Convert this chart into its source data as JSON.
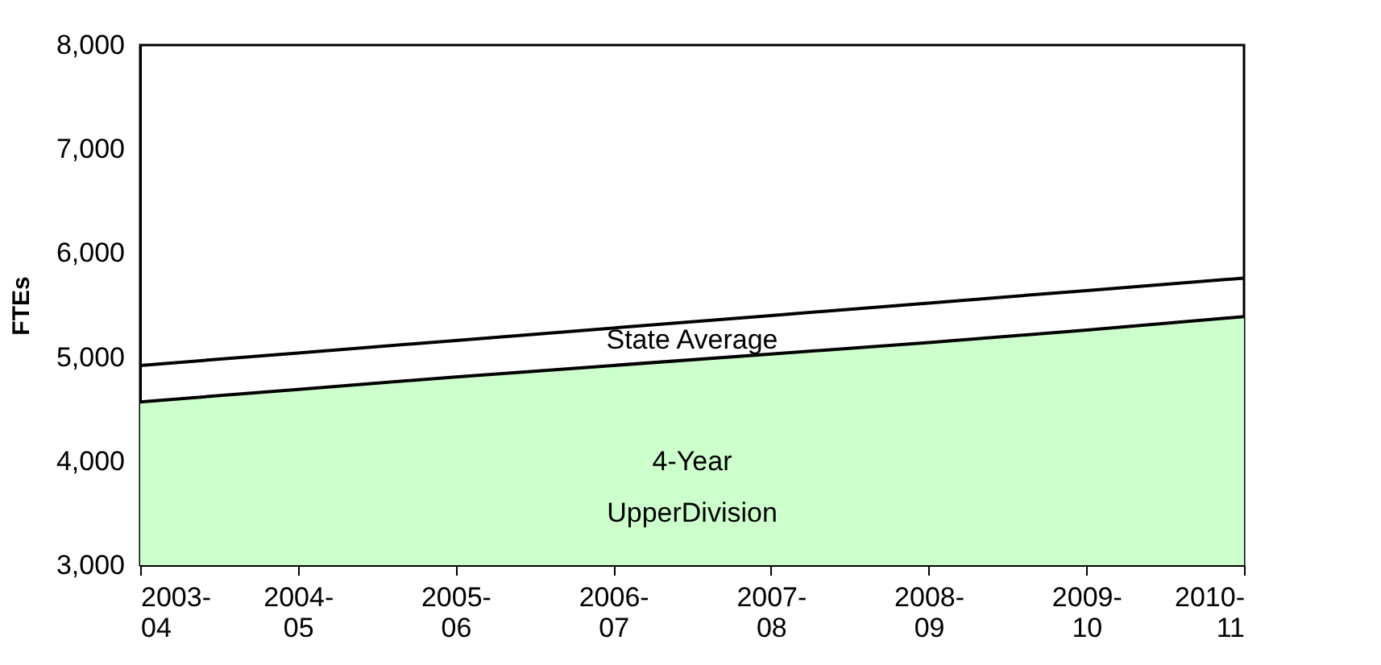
{
  "chart_data": {
    "type": "area",
    "ylabel": "FTEs",
    "categories": [
      "2003-04",
      "2004-05",
      "2005-06",
      "2006-07",
      "2007-08",
      "2008-09",
      "2009-10",
      "2010-11"
    ],
    "series": [
      {
        "name": "4-Year\nUpperDivision",
        "color": "#ccffcc",
        "values": [
          4570,
          4690,
          4810,
          4920,
          5030,
          5140,
          5260,
          5390
        ]
      },
      {
        "name": "State Average",
        "type": "line",
        "color": "#000000",
        "values": [
          4920,
          5040,
          5160,
          5280,
          5400,
          5520,
          5640,
          5760
        ]
      }
    ],
    "ylim": [
      3000,
      8000
    ],
    "yticks": [
      {
        "value": 3000,
        "label": "3,000"
      },
      {
        "value": 4000,
        "label": "4,000"
      },
      {
        "value": 5000,
        "label": "5,000"
      },
      {
        "value": 6000,
        "label": "6,000"
      },
      {
        "value": 7000,
        "label": "7,000"
      },
      {
        "value": 8000,
        "label": "8,000"
      }
    ],
    "grid": false,
    "legend": false
  }
}
